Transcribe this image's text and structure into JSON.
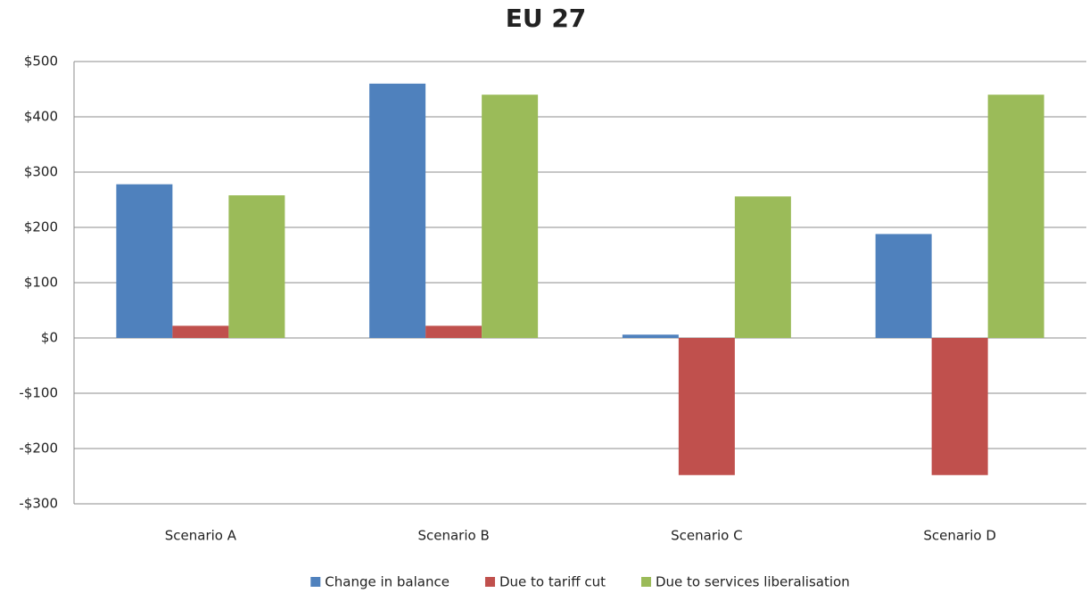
{
  "chart_data": {
    "type": "bar",
    "title": "EU 27",
    "categories": [
      "Scenario A",
      "Scenario B",
      "Scenario C",
      "Scenario D"
    ],
    "series": [
      {
        "name": "Change in balance",
        "color": "#4f81bd",
        "values": [
          278,
          460,
          6,
          188
        ]
      },
      {
        "name": "Due to tariff cut",
        "color": "#c0504d",
        "values": [
          22,
          22,
          -248,
          -248
        ]
      },
      {
        "name": "Due to services liberalisation",
        "color": "#9bbb59",
        "values": [
          258,
          440,
          256,
          440
        ]
      }
    ],
    "ylim": [
      -300,
      500
    ],
    "yticks": [
      {
        "value": -300,
        "label": "-$300"
      },
      {
        "value": -200,
        "label": "-$200"
      },
      {
        "value": -100,
        "label": "-$100"
      },
      {
        "value": 0,
        "label": "$0"
      },
      {
        "value": 100,
        "label": "$100"
      },
      {
        "value": 200,
        "label": "$200"
      },
      {
        "value": 300,
        "label": "$300"
      },
      {
        "value": 400,
        "label": "$400"
      },
      {
        "value": 500,
        "label": "$500"
      }
    ],
    "grid": true,
    "legend": "bottom"
  }
}
